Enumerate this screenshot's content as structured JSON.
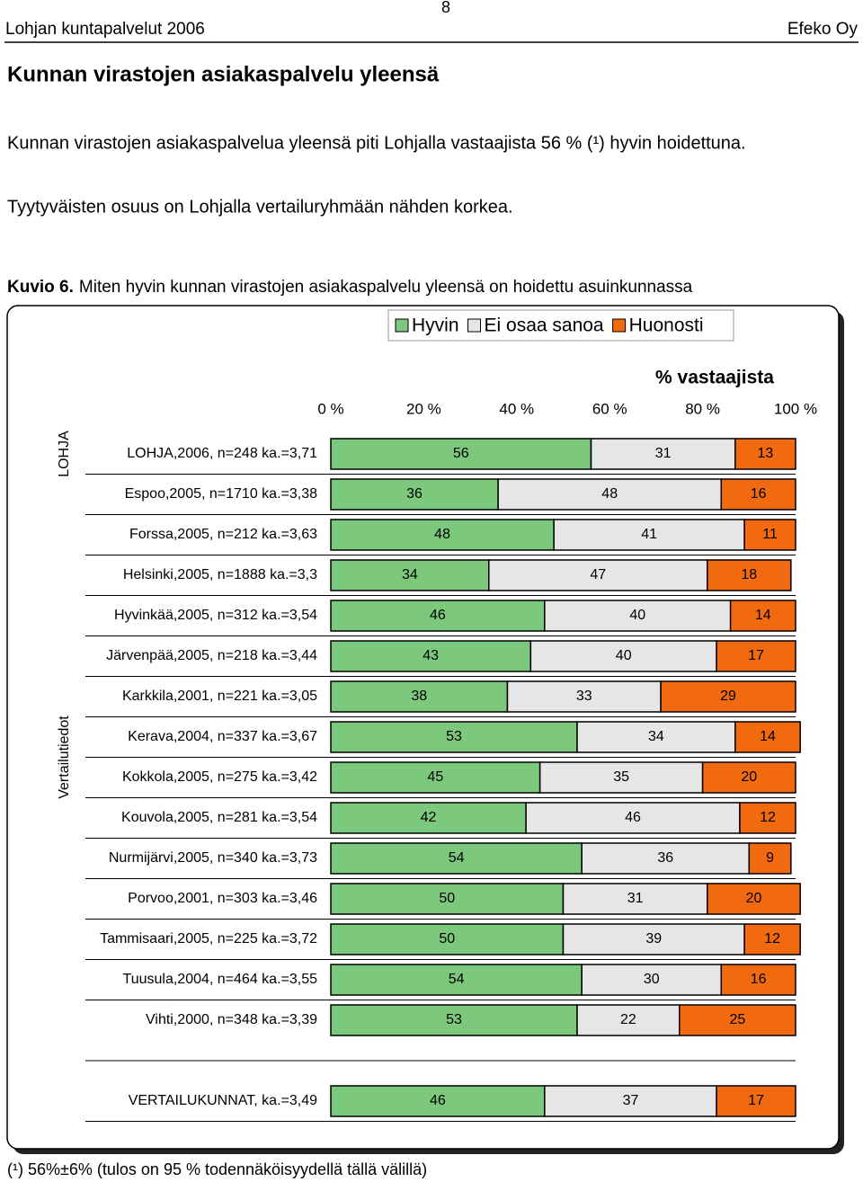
{
  "header": {
    "left": "Lohjan kuntapalvelut 2006",
    "page": "8",
    "right": "Efeko Oy"
  },
  "title": "Kunnan virastojen asiakaspalvelu yleensä",
  "paragraphs": [
    "Kunnan virastojen asiakaspalvelua yleensä piti Lohjalla vastaajista 56 % (¹) hyvin hoidettuna.",
    "Tyytyväisten osuus on Lohjalla vertailuryhmään nähden korkea."
  ],
  "caption": {
    "label": "Kuvio 6.",
    "text": "Miten hyvin kunnan virastojen asiakaspalvelu yleensä on hoidettu asuinkunnassa"
  },
  "footnote": "(¹) 56%±6% (tulos on 95 % todennäköisyydellä tällä välillä)",
  "chart_data": {
    "type": "stacked-bar-horizontal",
    "xlabel": "% vastaajista",
    "groups": [
      "LOHJA",
      "Vertailutiedot"
    ],
    "categories": [
      "LOHJA,2006, n=248 ka.=3,71",
      "Espoo,2005, n=1710 ka.=3,38",
      "Forssa,2005, n=212 ka.=3,63",
      "Helsinki,2005, n=1888 ka.=3,3",
      "Hyvinkää,2005, n=312 ka.=3,54",
      "Järvenpää,2005, n=218 ka.=3,44",
      "Karkkila,2001, n=221 ka.=3,05",
      "Kerava,2004, n=337 ka.=3,67",
      "Kokkola,2005, n=275 ka.=3,42",
      "Kouvola,2005, n=281 ka.=3,54",
      "Nurmijärvi,2005, n=340 ka.=3,73",
      "Porvoo,2001, n=303 ka.=3,46",
      "Tammisaari,2005, n=225 ka.=3,72",
      "Tuusula,2004, n=464 ka.=3,55",
      "Vihti,2000, n=348 ka.=3,39",
      "VERTAILUKUNNAT, ka.=3,49"
    ],
    "series": [
      {
        "name": "Hyvin",
        "color": "#7cc87c",
        "values": [
          56,
          36,
          48,
          34,
          46,
          43,
          38,
          53,
          45,
          42,
          54,
          50,
          50,
          54,
          53,
          46
        ]
      },
      {
        "name": "Ei osaa sanoa",
        "color": "#e6e6e6",
        "values": [
          31,
          48,
          41,
          47,
          40,
          40,
          33,
          34,
          35,
          46,
          36,
          31,
          39,
          30,
          22,
          37
        ]
      },
      {
        "name": "Huonosti",
        "color": "#f26a0f",
        "values": [
          13,
          16,
          11,
          18,
          14,
          17,
          29,
          14,
          20,
          12,
          9,
          20,
          12,
          16,
          25,
          17
        ]
      }
    ],
    "xlim": [
      0,
      100
    ],
    "xticks": [
      {
        "value": 0,
        "label": "0 %"
      },
      {
        "value": 20,
        "label": "20 %"
      },
      {
        "value": 40,
        "label": "40 %"
      },
      {
        "value": 60,
        "label": "60 %"
      },
      {
        "value": 80,
        "label": "80 %"
      },
      {
        "value": 100,
        "label": "100 %"
      }
    ],
    "legend": "top-right"
  }
}
